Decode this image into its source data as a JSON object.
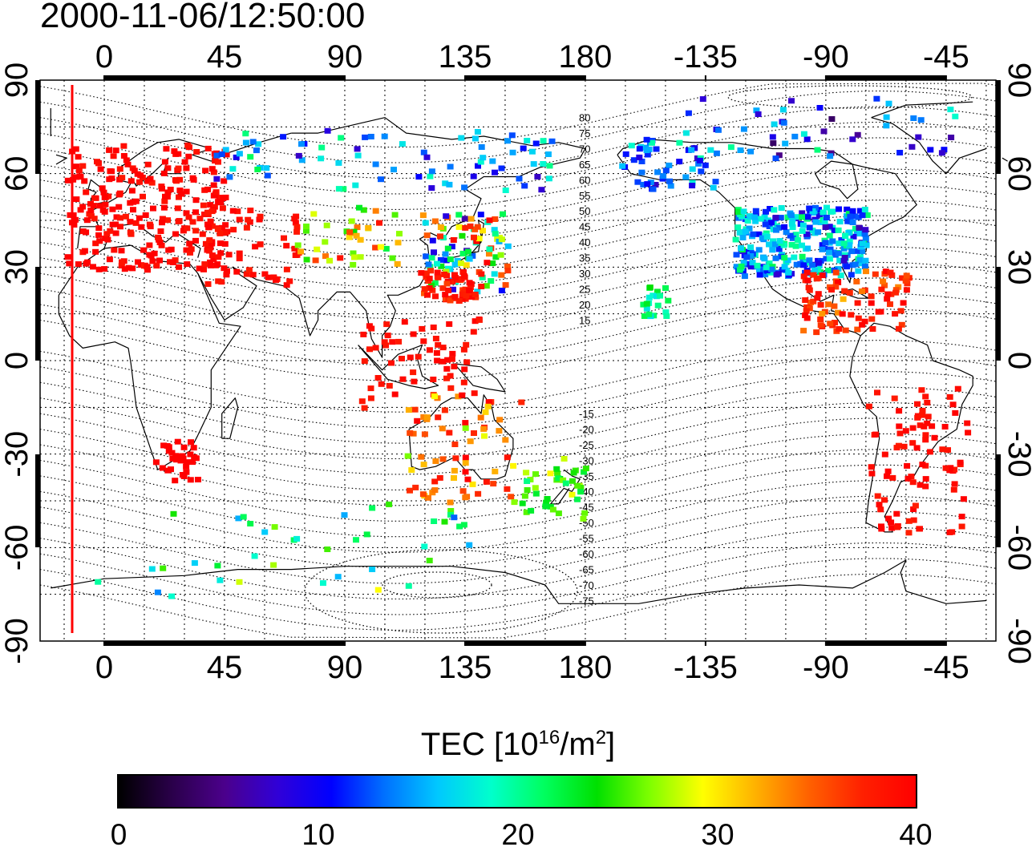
{
  "timestamp": "2000-11-06/12:50:00",
  "map": {
    "lon_ticks_top": [
      "0",
      "45",
      "90",
      "135",
      "180",
      "-135",
      "-90",
      "-45"
    ],
    "lon_ticks_bottom": [
      "0",
      "45",
      "90",
      "135",
      "180",
      "-135",
      "-90",
      "-45"
    ],
    "lat_ticks": [
      "90",
      "60",
      "30",
      "0",
      "-30",
      "-60",
      "-90"
    ],
    "contour_labels": [
      "80",
      "75",
      "70",
      "65",
      "60",
      "55",
      "50",
      "45",
      "40",
      "35",
      "30",
      "25",
      "20",
      "15",
      "-15",
      "-20",
      "-25",
      "-30",
      "-35",
      "-40",
      "-45",
      "-50",
      "-55",
      "-60",
      "-65",
      "-70",
      "-75"
    ]
  },
  "colorbar": {
    "title_prefix": "TEC  [10",
    "title_exp1": "16",
    "title_mid": "/m",
    "title_exp2": "2",
    "title_suffix": "]",
    "min": 0,
    "max": 40,
    "tick_labels": [
      "0",
      "10",
      "20",
      "30",
      "40"
    ],
    "colormap": [
      "#000000",
      "#2a004a",
      "#4b008c",
      "#3000d8",
      "#0000ff",
      "#0070ff",
      "#00c8ff",
      "#00ffcc",
      "#00ff60",
      "#00e000",
      "#80ff00",
      "#ffff00",
      "#ffb000",
      "#ff6000",
      "#ff2000",
      "#ff0000"
    ]
  },
  "colors": {
    "high_tec": "#ff0000",
    "coast": "#000000",
    "grid": "#000000"
  }
}
